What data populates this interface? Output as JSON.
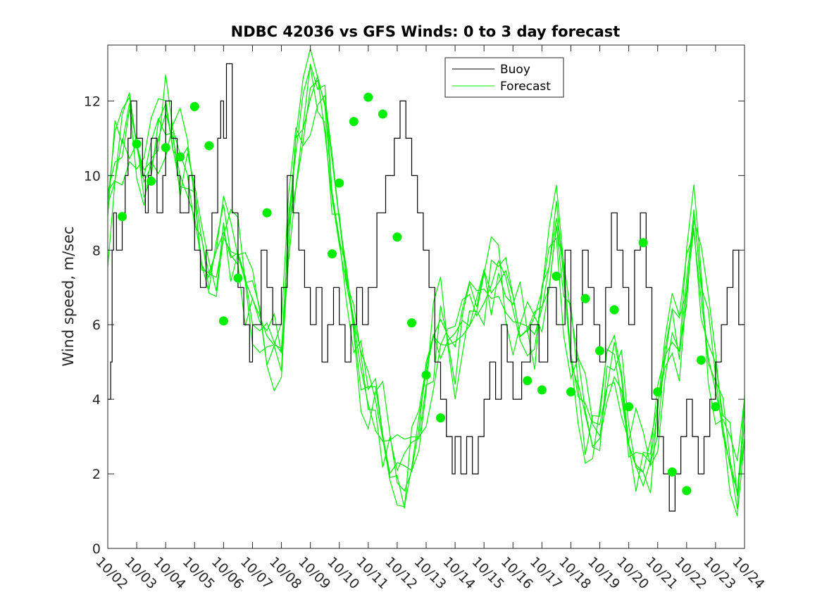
{
  "chart_data": {
    "type": "line",
    "title": "NDBC 42036 vs GFS Winds: 0 to 3 day forecast",
    "xlabel": "",
    "ylabel": "Wind speed, m/sec",
    "xlim": [
      "10/02",
      "10/24"
    ],
    "ylim": [
      0,
      13.5
    ],
    "x_ticks": [
      "10/02",
      "10/03",
      "10/04",
      "10/05",
      "10/06",
      "10/07",
      "10/08",
      "10/09",
      "10/10",
      "10/11",
      "10/12",
      "10/13",
      "10/14",
      "10/15",
      "10/16",
      "10/17",
      "10/18",
      "10/19",
      "10/20",
      "10/21",
      "10/22",
      "10/23",
      "10/24"
    ],
    "y_ticks": [
      0,
      2,
      4,
      6,
      8,
      10,
      12
    ],
    "grid": false,
    "legend": {
      "placement": "top-center",
      "entries": [
        "Buoy",
        "Forecast"
      ]
    },
    "colors": {
      "buoy": "#000000",
      "forecast": "#00ee00"
    },
    "series": [
      {
        "name": "Buoy",
        "style": "step",
        "x_days": [
          0,
          0.1,
          0.15,
          0.2,
          0.3,
          0.5,
          0.6,
          0.7,
          0.8,
          1.0,
          1.2,
          1.3,
          1.4,
          1.5,
          1.7,
          1.9,
          2.0,
          2.2,
          2.4,
          2.5,
          2.8,
          3.0,
          3.2,
          3.4,
          3.6,
          3.8,
          3.9,
          4.0,
          4.1,
          4.3,
          4.5,
          4.7,
          4.9,
          5.0,
          5.3,
          5.5,
          5.7,
          6.0,
          6.2,
          6.4,
          6.6,
          6.8,
          7.0,
          7.2,
          7.4,
          7.6,
          7.8,
          8.0,
          8.2,
          8.4,
          8.6,
          8.8,
          9.0,
          9.3,
          9.6,
          9.9,
          10.1,
          10.3,
          10.5,
          10.7,
          10.9,
          11.1,
          11.3,
          11.5,
          11.7,
          11.9,
          12.0,
          12.2,
          12.4,
          12.6,
          12.8,
          13.0,
          13.2,
          13.4,
          13.6,
          13.8,
          14.0,
          14.3,
          14.6,
          14.9,
          15.2,
          15.5,
          15.8,
          16.0,
          16.2,
          16.4,
          16.6,
          16.8,
          17.0,
          17.2,
          17.4,
          17.6,
          17.8,
          18.0,
          18.2,
          18.4,
          18.6,
          18.8,
          19.0,
          19.2,
          19.4,
          19.6,
          19.8,
          20.0,
          20.2,
          20.4,
          20.6,
          20.8,
          21.0,
          21.2,
          21.4,
          21.6,
          21.8,
          22.0
        ],
        "values": [
          4,
          5,
          8,
          9,
          8,
          9,
          10,
          11,
          12,
          11,
          10,
          9,
          10,
          11,
          9,
          10,
          12,
          11,
          10,
          9,
          10,
          8,
          7,
          8,
          9,
          11,
          12,
          11,
          13,
          9,
          7,
          6,
          5,
          6,
          8,
          7,
          6,
          7,
          10,
          9,
          8,
          7,
          6,
          7,
          5,
          6,
          7,
          6,
          5,
          6,
          7,
          6,
          7,
          9,
          10,
          11,
          12,
          11,
          10,
          9,
          8,
          7,
          5,
          4,
          3,
          2,
          3,
          2,
          3,
          2,
          3,
          4,
          5,
          4,
          6,
          5,
          4,
          5,
          6,
          5,
          7,
          6,
          8,
          5,
          6,
          8,
          7,
          6,
          5,
          7,
          9,
          8,
          7,
          6,
          8,
          9,
          7,
          4,
          3,
          2,
          1,
          2,
          3,
          4,
          3,
          2,
          3,
          4,
          5,
          6,
          7,
          8,
          6,
          6
        ],
        "notes_visible_peaks": [
          12,
          13,
          12
        ]
      },
      {
        "name": "Forecast",
        "style": "ensemble-lines",
        "x_days": [
          0,
          0.25,
          0.5,
          0.75,
          1.0,
          1.25,
          1.5,
          1.75,
          2.0,
          2.25,
          2.5,
          2.75,
          3.0,
          3.25,
          3.5,
          3.75,
          4.0,
          4.25,
          4.5,
          4.75,
          5.0,
          5.25,
          5.5,
          5.75,
          6.0,
          6.25,
          6.5,
          6.75,
          7.0,
          7.25,
          7.5,
          7.75,
          8.0,
          8.25,
          8.5,
          8.75,
          9.0,
          9.25,
          9.5,
          9.75,
          10.0,
          10.25,
          10.5,
          10.75,
          11.0,
          11.25,
          11.5,
          11.75,
          12.0,
          12.25,
          12.5,
          12.75,
          13.0,
          13.25,
          13.5,
          13.75,
          14.0,
          14.25,
          14.5,
          14.75,
          15.0,
          15.25,
          15.5,
          15.75,
          16.0,
          16.25,
          16.5,
          16.75,
          17.0,
          17.25,
          17.5,
          17.75,
          18.0,
          18.25,
          18.5,
          18.75,
          19.0,
          19.25,
          19.5,
          19.75,
          20.0,
          20.25,
          20.5,
          20.75,
          21.0,
          21.25,
          21.5,
          21.75,
          22.0
        ],
        "values": [
          9,
          10.5,
          11,
          11.5,
          10.5,
          9.8,
          10.3,
          11,
          11.7,
          11.2,
          10.5,
          10.2,
          9.6,
          8,
          7.2,
          7.5,
          8.8,
          8.2,
          7.5,
          7,
          6.5,
          6,
          5.5,
          5.5,
          5.8,
          8.5,
          10.5,
          11.5,
          12.5,
          12.3,
          11.5,
          10,
          8.5,
          7,
          5.8,
          4.8,
          4.3,
          3.8,
          3.2,
          2.5,
          2,
          1.8,
          2.5,
          3.5,
          4.5,
          5.5,
          6,
          5.5,
          5,
          5.8,
          6.5,
          6.5,
          7,
          7.2,
          7.5,
          7,
          6.5,
          6.2,
          6,
          5.8,
          6.5,
          7.5,
          8.5,
          7,
          5.5,
          4.5,
          3.5,
          3,
          3.5,
          4.5,
          5,
          4.5,
          3,
          2.5,
          2,
          2.5,
          3.5,
          5,
          6,
          5.5,
          7.5,
          8.5,
          7,
          5.5,
          4.5,
          3.5,
          2.5,
          2,
          3.5
        ]
      },
      {
        "name": "Forecast",
        "style": "markers",
        "x": [
          "10/02 12:00",
          "10/03",
          "10/03 12:00",
          "10/04",
          "10/04 12:00",
          "10/05",
          "10/05 12:00",
          "10/06",
          "10/06 12:00",
          "10/07 12:00",
          "10/09 18:00",
          "10/10",
          "10/10 12:00",
          "10/11",
          "10/11 12:00",
          "10/12",
          "10/12 12:00",
          "10/13",
          "10/13 12:00",
          "10/16 12:00",
          "10/17",
          "10/17 12:00",
          "10/18",
          "10/18 12:00",
          "10/19",
          "10/19 12:00",
          "10/20",
          "10/20 12:00",
          "10/21",
          "10/21 12:00",
          "10/22",
          "10/22 12:00",
          "10/23"
        ],
        "x_days": [
          0.5,
          1.0,
          1.5,
          2.0,
          2.5,
          3.0,
          3.5,
          4.0,
          4.5,
          5.5,
          7.75,
          8.0,
          8.5,
          9.0,
          9.5,
          10.0,
          10.5,
          11.0,
          11.5,
          14.5,
          15.0,
          15.5,
          16.0,
          16.5,
          17.0,
          17.5,
          18.0,
          18.5,
          19.0,
          19.5,
          20.0,
          20.5,
          21.0
        ],
        "values": [
          8.9,
          10.85,
          9.85,
          10.75,
          10.5,
          11.85,
          10.8,
          6.1,
          7.25,
          9.0,
          7.9,
          9.8,
          11.45,
          12.1,
          11.65,
          8.35,
          6.05,
          4.65,
          3.5,
          4.5,
          4.25,
          7.3,
          4.2,
          6.7,
          5.3,
          6.4,
          3.8,
          8.2,
          4.2,
          2.05,
          1.55,
          5.05,
          3.8
        ]
      }
    ]
  }
}
